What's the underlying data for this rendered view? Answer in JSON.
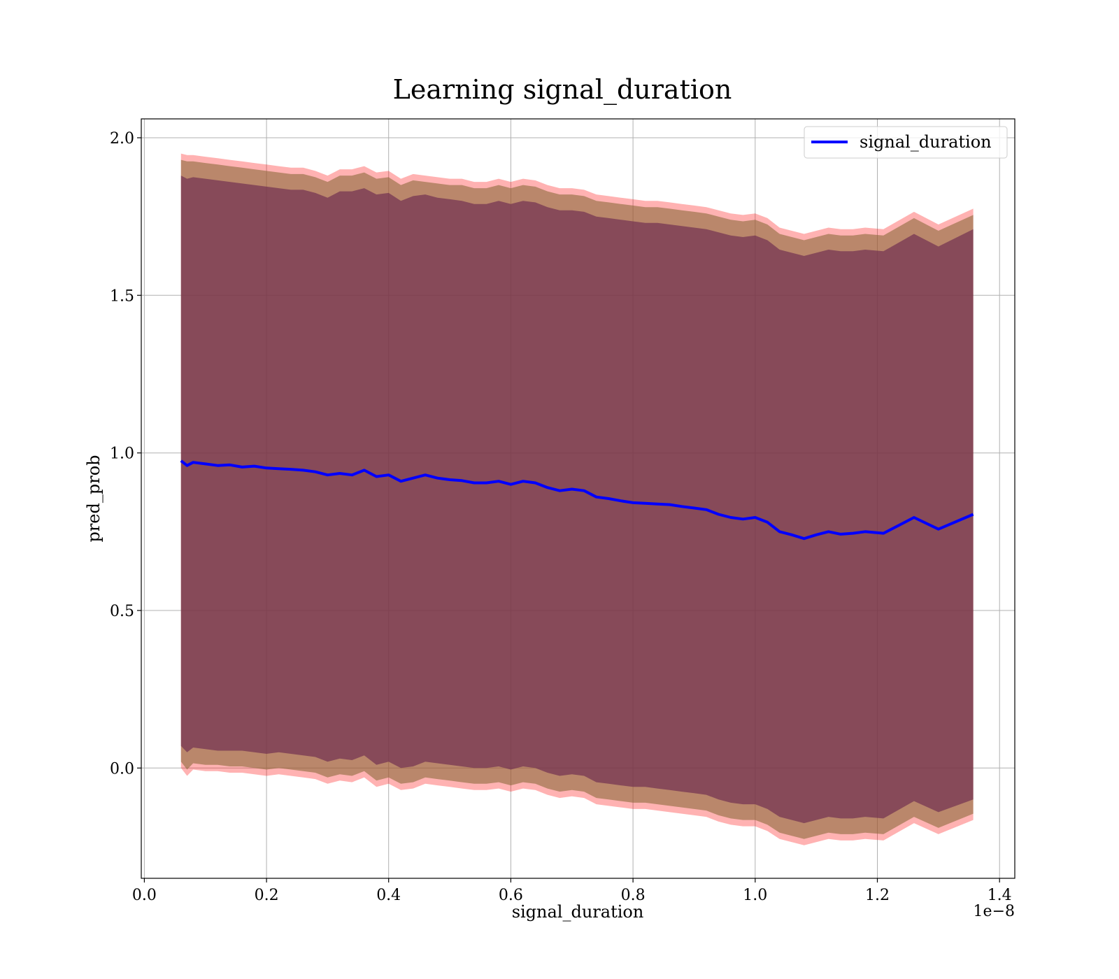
{
  "chart_data": {
    "type": "line",
    "title": "Learning signal_duration",
    "xlabel": "signal_duration",
    "ylabel": "pred_prob",
    "x_offset_text": "1e−8",
    "xlim": [
      -0.005,
      1.425
    ],
    "ylim": [
      -0.35,
      2.06
    ],
    "x_ticks": [
      0.0,
      0.2,
      0.4,
      0.6,
      0.8,
      1.0,
      1.2,
      1.4
    ],
    "x_tick_labels": [
      "0.0",
      "0.2",
      "0.4",
      "0.6",
      "0.8",
      "1.0",
      "1.2",
      "1.4"
    ],
    "y_ticks": [
      0.0,
      0.5,
      1.0,
      1.5,
      2.0
    ],
    "y_tick_labels": [
      "0.0",
      "0.5",
      "1.0",
      "1.5",
      "2.0"
    ],
    "grid": true,
    "legend_position": "top-right",
    "colors": {
      "line": "#0000ff",
      "band_outer": "#ff0000",
      "band_middle": "#8c6b3c",
      "band_inner": "#6b2a50"
    },
    "series": [
      {
        "name": "signal_duration",
        "x": [
          0.06,
          0.07,
          0.08,
          0.1,
          0.12,
          0.14,
          0.16,
          0.18,
          0.2,
          0.22,
          0.24,
          0.26,
          0.28,
          0.3,
          0.32,
          0.34,
          0.36,
          0.38,
          0.4,
          0.42,
          0.44,
          0.46,
          0.48,
          0.5,
          0.52,
          0.54,
          0.56,
          0.58,
          0.6,
          0.62,
          0.64,
          0.66,
          0.68,
          0.7,
          0.72,
          0.74,
          0.76,
          0.78,
          0.8,
          0.82,
          0.84,
          0.86,
          0.88,
          0.9,
          0.92,
          0.94,
          0.96,
          0.98,
          1.0,
          1.02,
          1.04,
          1.06,
          1.08,
          1.1,
          1.12,
          1.14,
          1.16,
          1.18,
          1.21,
          1.26,
          1.3,
          1.357
        ],
        "y": [
          0.975,
          0.96,
          0.97,
          0.965,
          0.96,
          0.962,
          0.955,
          0.958,
          0.952,
          0.95,
          0.948,
          0.945,
          0.94,
          0.93,
          0.935,
          0.93,
          0.945,
          0.925,
          0.93,
          0.91,
          0.92,
          0.93,
          0.92,
          0.915,
          0.912,
          0.905,
          0.905,
          0.91,
          0.9,
          0.91,
          0.905,
          0.89,
          0.88,
          0.885,
          0.88,
          0.86,
          0.855,
          0.848,
          0.842,
          0.84,
          0.838,
          0.836,
          0.83,
          0.825,
          0.82,
          0.805,
          0.795,
          0.79,
          0.795,
          0.78,
          0.75,
          0.74,
          0.728,
          0.74,
          0.75,
          0.742,
          0.745,
          0.75,
          0.745,
          0.795,
          0.758,
          0.805
        ],
        "band_outer_upper": [
          1.95,
          1.945,
          1.945,
          1.94,
          1.935,
          1.93,
          1.925,
          1.92,
          1.915,
          1.91,
          1.905,
          1.905,
          1.895,
          1.88,
          1.9,
          1.9,
          1.91,
          1.89,
          1.895,
          1.87,
          1.885,
          1.88,
          1.875,
          1.87,
          1.87,
          1.86,
          1.86,
          1.87,
          1.86,
          1.87,
          1.865,
          1.85,
          1.84,
          1.84,
          1.835,
          1.82,
          1.815,
          1.81,
          1.805,
          1.8,
          1.8,
          1.795,
          1.79,
          1.785,
          1.78,
          1.77,
          1.76,
          1.755,
          1.76,
          1.745,
          1.715,
          1.705,
          1.695,
          1.705,
          1.715,
          1.71,
          1.71,
          1.715,
          1.71,
          1.765,
          1.725,
          1.775
        ],
        "band_outer_lower": [
          0.0,
          -0.025,
          -0.005,
          -0.01,
          -0.01,
          -0.015,
          -0.015,
          -0.02,
          -0.025,
          -0.02,
          -0.025,
          -0.03,
          -0.035,
          -0.05,
          -0.04,
          -0.045,
          -0.03,
          -0.06,
          -0.05,
          -0.07,
          -0.065,
          -0.05,
          -0.055,
          -0.06,
          -0.065,
          -0.07,
          -0.07,
          -0.065,
          -0.075,
          -0.065,
          -0.07,
          -0.085,
          -0.095,
          -0.09,
          -0.095,
          -0.115,
          -0.12,
          -0.125,
          -0.13,
          -0.13,
          -0.135,
          -0.14,
          -0.145,
          -0.15,
          -0.155,
          -0.17,
          -0.18,
          -0.185,
          -0.185,
          -0.2,
          -0.225,
          -0.235,
          -0.245,
          -0.235,
          -0.225,
          -0.23,
          -0.23,
          -0.225,
          -0.23,
          -0.175,
          -0.21,
          -0.165
        ],
        "band_middle_upper": [
          1.93,
          1.925,
          1.925,
          1.92,
          1.915,
          1.91,
          1.905,
          1.9,
          1.895,
          1.89,
          1.885,
          1.885,
          1.875,
          1.86,
          1.88,
          1.88,
          1.89,
          1.87,
          1.875,
          1.85,
          1.865,
          1.86,
          1.855,
          1.85,
          1.85,
          1.84,
          1.84,
          1.85,
          1.84,
          1.85,
          1.845,
          1.83,
          1.82,
          1.82,
          1.815,
          1.8,
          1.795,
          1.79,
          1.785,
          1.78,
          1.78,
          1.775,
          1.77,
          1.765,
          1.76,
          1.75,
          1.74,
          1.735,
          1.74,
          1.725,
          1.695,
          1.685,
          1.675,
          1.685,
          1.695,
          1.69,
          1.69,
          1.695,
          1.69,
          1.745,
          1.705,
          1.755
        ],
        "band_middle_lower": [
          0.02,
          -0.005,
          0.015,
          0.01,
          0.01,
          0.005,
          0.005,
          0.0,
          -0.005,
          0.0,
          -0.005,
          -0.01,
          -0.015,
          -0.03,
          -0.02,
          -0.025,
          -0.01,
          -0.04,
          -0.03,
          -0.05,
          -0.045,
          -0.03,
          -0.035,
          -0.04,
          -0.045,
          -0.05,
          -0.05,
          -0.045,
          -0.055,
          -0.045,
          -0.05,
          -0.065,
          -0.075,
          -0.07,
          -0.075,
          -0.095,
          -0.1,
          -0.105,
          -0.11,
          -0.11,
          -0.115,
          -0.12,
          -0.125,
          -0.13,
          -0.135,
          -0.15,
          -0.16,
          -0.165,
          -0.165,
          -0.18,
          -0.205,
          -0.215,
          -0.225,
          -0.215,
          -0.205,
          -0.21,
          -0.21,
          -0.205,
          -0.21,
          -0.155,
          -0.19,
          -0.145
        ],
        "band_inner_upper": [
          1.88,
          1.87,
          1.875,
          1.87,
          1.865,
          1.86,
          1.855,
          1.85,
          1.845,
          1.84,
          1.835,
          1.835,
          1.825,
          1.81,
          1.83,
          1.83,
          1.84,
          1.82,
          1.825,
          1.8,
          1.815,
          1.82,
          1.81,
          1.805,
          1.8,
          1.79,
          1.79,
          1.8,
          1.79,
          1.8,
          1.795,
          1.78,
          1.77,
          1.77,
          1.765,
          1.75,
          1.745,
          1.74,
          1.735,
          1.73,
          1.73,
          1.725,
          1.72,
          1.715,
          1.71,
          1.7,
          1.69,
          1.685,
          1.69,
          1.675,
          1.645,
          1.635,
          1.625,
          1.635,
          1.645,
          1.64,
          1.64,
          1.645,
          1.64,
          1.695,
          1.655,
          1.71
        ],
        "band_inner_lower": [
          0.07,
          0.05,
          0.065,
          0.06,
          0.055,
          0.055,
          0.055,
          0.05,
          0.045,
          0.05,
          0.045,
          0.04,
          0.035,
          0.02,
          0.03,
          0.025,
          0.04,
          0.01,
          0.02,
          0.0,
          0.005,
          0.02,
          0.015,
          0.01,
          0.005,
          0.0,
          0.0,
          0.005,
          -0.005,
          0.005,
          0.0,
          -0.015,
          -0.025,
          -0.02,
          -0.025,
          -0.045,
          -0.05,
          -0.055,
          -0.06,
          -0.06,
          -0.065,
          -0.07,
          -0.075,
          -0.08,
          -0.085,
          -0.1,
          -0.11,
          -0.115,
          -0.115,
          -0.13,
          -0.155,
          -0.165,
          -0.175,
          -0.165,
          -0.155,
          -0.16,
          -0.16,
          -0.155,
          -0.16,
          -0.105,
          -0.14,
          -0.1
        ]
      }
    ]
  }
}
